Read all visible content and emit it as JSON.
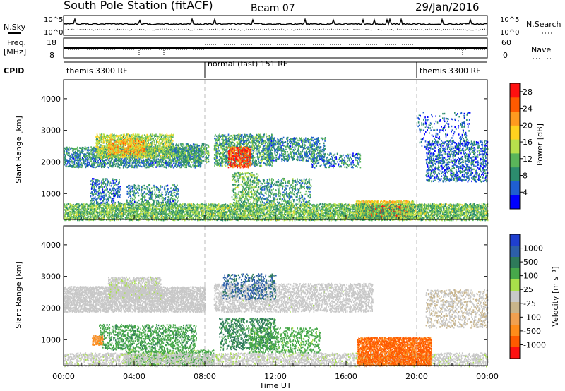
{
  "header": {
    "title": "South Pole Station (fitACF)",
    "beam": "Beam 07",
    "date": "29/Jan/2016"
  },
  "noise_panel": {
    "left_label": "N.Sky",
    "right_label": "N.Search",
    "left_ticks": [
      "10^5",
      "10^0"
    ],
    "right_ticks": [
      "10^5",
      "10^0"
    ]
  },
  "freq_panel": {
    "left_label_1": "Freq.",
    "left_label_2": "[MHz]",
    "left_ticks": [
      "18",
      "8"
    ],
    "right_label": "Nave",
    "right_ticks": [
      "60",
      "0"
    ]
  },
  "cpid_panel": {
    "label": "CPID",
    "segments": [
      {
        "label": "themis 3300 RF",
        "start_hour": 0,
        "end_hour": 8
      },
      {
        "label": "normal (fast) 151 RF",
        "start_hour": 8,
        "end_hour": 20
      },
      {
        "label": "themis 3300 RF",
        "start_hour": 20,
        "end_hour": 24
      }
    ]
  },
  "colors": {
    "power_scale": [
      "#0000ff",
      "#1f5fd0",
      "#2c8c6e",
      "#5ab55a",
      "#b7e04c",
      "#ffd21f",
      "#ff9a1f",
      "#ff5a00",
      "#ff1010"
    ],
    "velocity_scale": [
      "#1f3fd0",
      "#2d5fa8",
      "#2e7a5a",
      "#47a84a",
      "#a8e04a",
      "#c8c8c8",
      "#c8b48a",
      "#f0a050",
      "#ff8c1a",
      "#ff5a00",
      "#ff1010"
    ]
  },
  "chart_data": [
    {
      "type": "heatmap",
      "name": "power",
      "xlabel": "",
      "ylabel": "Slant Range [km]",
      "x_ticks": [
        "00:00",
        "04:00",
        "08:00",
        "12:00",
        "16:00",
        "20:00",
        "00:00"
      ],
      "xlim_hours": [
        0,
        24
      ],
      "ylim": [
        180,
        4600
      ],
      "y_ticks": [
        1000,
        2000,
        3000,
        4000
      ],
      "colorbar": {
        "label": "Power [dB]",
        "ticks": [
          4,
          8,
          12,
          16,
          20,
          24,
          28
        ],
        "range": [
          0,
          30
        ]
      },
      "regions": [
        {
          "t0": 0.0,
          "t1": 7.8,
          "r0": 1850,
          "r1": 2500,
          "level": 8,
          "density": 0.55
        },
        {
          "t0": 1.8,
          "t1": 6.2,
          "r0": 2150,
          "r1": 2900,
          "level": 14,
          "density": 0.6
        },
        {
          "t0": 2.5,
          "t1": 4.6,
          "r0": 2250,
          "r1": 2750,
          "level": 20,
          "density": 0.5
        },
        {
          "t0": 6.0,
          "t1": 8.2,
          "r0": 2000,
          "r1": 2600,
          "level": 10,
          "density": 0.45
        },
        {
          "t0": 1.5,
          "t1": 3.2,
          "r0": 700,
          "r1": 1500,
          "level": 7,
          "density": 0.3
        },
        {
          "t0": 3.5,
          "t1": 6.5,
          "r0": 650,
          "r1": 1300,
          "level": 8,
          "density": 0.3
        },
        {
          "t0": 8.5,
          "t1": 11.8,
          "r0": 1900,
          "r1": 2900,
          "level": 10,
          "density": 0.5
        },
        {
          "t0": 9.3,
          "t1": 10.6,
          "r0": 1850,
          "r1": 2500,
          "level": 26,
          "density": 0.6
        },
        {
          "t0": 9.5,
          "t1": 11.0,
          "r0": 600,
          "r1": 1700,
          "level": 12,
          "density": 0.35
        },
        {
          "t0": 11.5,
          "t1": 14.8,
          "r0": 2050,
          "r1": 2800,
          "level": 8,
          "density": 0.4
        },
        {
          "t0": 14.0,
          "t1": 16.8,
          "r0": 1850,
          "r1": 2300,
          "level": 7,
          "density": 0.3
        },
        {
          "t0": 11.0,
          "t1": 14.0,
          "r0": 700,
          "r1": 1500,
          "level": 9,
          "density": 0.3
        },
        {
          "t0": 16.5,
          "t1": 19.8,
          "r0": 200,
          "r1": 800,
          "level": 18,
          "density": 0.85
        },
        {
          "t0": 17.3,
          "t1": 19.5,
          "r0": 300,
          "r1": 650,
          "level": 28,
          "density": 0.9
        },
        {
          "t0": 20.5,
          "t1": 24.0,
          "r0": 1400,
          "r1": 2700,
          "level": 6,
          "density": 0.35
        },
        {
          "t0": 20.0,
          "t1": 23.0,
          "r0": 2500,
          "r1": 3600,
          "level": 5,
          "density": 0.12
        },
        {
          "t0": 0.0,
          "t1": 24.0,
          "r0": 180,
          "r1": 700,
          "level": 12,
          "density": 0.7
        }
      ]
    },
    {
      "type": "heatmap",
      "name": "velocity",
      "xlabel": "Time UT",
      "ylabel": "Slant Range [km]",
      "x_ticks": [
        "00:00",
        "04:00",
        "08:00",
        "12:00",
        "16:00",
        "20:00",
        "00:00"
      ],
      "xlim_hours": [
        0,
        24
      ],
      "ylim": [
        180,
        4600
      ],
      "y_ticks": [
        1000,
        2000,
        3000,
        4000
      ],
      "colorbar": {
        "label": "Velocity [m s⁻¹]",
        "ticks": [
          "1000",
          "500",
          "100",
          "25",
          "-25",
          "-100",
          "-500",
          "-1000"
        ]
      },
      "regions": [
        {
          "t0": 0.0,
          "t1": 8.0,
          "r0": 1900,
          "r1": 2700,
          "level": 0,
          "density": 0.7
        },
        {
          "t0": 2.5,
          "t1": 5.5,
          "r0": 2300,
          "r1": 3000,
          "level": 10,
          "density": 0.6
        },
        {
          "t0": 8.5,
          "t1": 17.5,
          "r0": 1900,
          "r1": 2800,
          "level": 5,
          "density": 0.45
        },
        {
          "t0": 2.0,
          "t1": 7.5,
          "r0": 700,
          "r1": 1500,
          "level": 200,
          "density": 0.35
        },
        {
          "t0": 8.8,
          "t1": 12.0,
          "r0": 700,
          "r1": 1700,
          "level": 300,
          "density": 0.35
        },
        {
          "t0": 10.5,
          "t1": 14.5,
          "r0": 600,
          "r1": 1400,
          "level": 150,
          "density": 0.3
        },
        {
          "t0": 3.5,
          "t1": 8.5,
          "r0": 200,
          "r1": 700,
          "level": 150,
          "density": 0.5
        },
        {
          "t0": 0.0,
          "t1": 24.0,
          "r0": 180,
          "r1": 600,
          "level": 10,
          "density": 0.5
        },
        {
          "t0": 16.6,
          "t1": 20.8,
          "r0": 200,
          "r1": 1100,
          "level": -600,
          "density": 0.8
        },
        {
          "t0": 1.6,
          "t1": 2.2,
          "r0": 850,
          "r1": 1150,
          "level": -300,
          "density": 0.8
        },
        {
          "t0": 20.5,
          "t1": 24.0,
          "r0": 1400,
          "r1": 2600,
          "level": -20,
          "density": 0.3
        },
        {
          "t0": 9.0,
          "t1": 12.0,
          "r0": 2300,
          "r1": 3100,
          "level": 600,
          "density": 0.25
        }
      ]
    }
  ]
}
